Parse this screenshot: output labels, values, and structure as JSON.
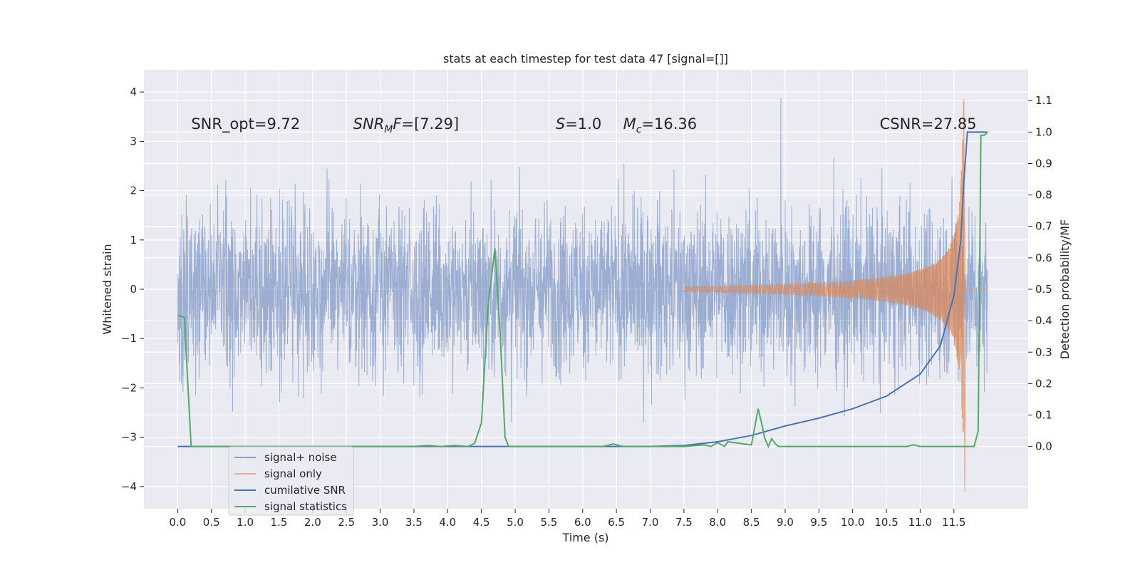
{
  "chart_data": {
    "type": "line",
    "title": "stats at each timestep for test data 47 [signal=[]]",
    "xlabel": "Time (s)",
    "ylabel": "Whitened strain",
    "y2label": "Detection probability/MF",
    "xlim": [
      -0.5,
      12.6
    ],
    "ylim": [
      -4.45,
      4.45
    ],
    "y2lim": [
      -0.198,
      1.198
    ],
    "grid": true,
    "legend_position": "lower-left",
    "x_ticks": [
      "0.0",
      "0.5",
      "1.0",
      "1.5",
      "2.0",
      "2.5",
      "3.0",
      "3.5",
      "4.0",
      "4.5",
      "5.0",
      "5.5",
      "6.0",
      "6.5",
      "7.0",
      "7.5",
      "8.0",
      "8.5",
      "9.0",
      "9.5",
      "10.0",
      "10.5",
      "11.0",
      "11.5"
    ],
    "y_ticks": [
      "4",
      "3",
      "2",
      "1",
      "0",
      "−1",
      "−2",
      "−3",
      "−4"
    ],
    "y2_ticks": [
      "1.1",
      "1.0",
      "0.9",
      "0.8",
      "0.7",
      "0.6",
      "0.5",
      "0.4",
      "0.3",
      "0.2",
      "0.1",
      "0.0"
    ],
    "annotations": [
      {
        "text": "SNR_opt=9.72",
        "x": 0.2,
        "y": 3.25
      },
      {
        "text": "SNRMF=[7.29]",
        "x": 2.6,
        "y": 3.25
      },
      {
        "text": "S=1.0",
        "x": 5.6,
        "y": 3.25
      },
      {
        "text": "Mc=16.36",
        "x": 6.6,
        "y": 3.25
      },
      {
        "text": "CSNR=27.85",
        "x": 10.4,
        "y": 3.25
      }
    ],
    "series": [
      {
        "name": "signal+ noise",
        "color": "#4c72b0",
        "axis": "left",
        "description": "whitened strain data (noise-dominated, roughly ±2 with spikes to ±4)",
        "time_range": [
          0.0,
          12.0
        ],
        "typical_amplitude": 2.0,
        "peaks": {
          "max": 4.1,
          "min": -3.9
        }
      },
      {
        "name": "signal only",
        "color": "#dd8452",
        "axis": "left",
        "description": "chirp waveform growing in amplitude, merging near 11.65 s",
        "onset_time": 7.5,
        "merger_time": 11.65,
        "peak_amplitude": [
          -4.1,
          3.8
        ]
      },
      {
        "name": "cumilative SNR",
        "color": "#4c72b0",
        "axis": "right",
        "x": [
          0.0,
          5.0,
          7.0,
          7.5,
          8.0,
          8.5,
          9.0,
          9.5,
          10.0,
          10.5,
          11.0,
          11.3,
          11.5,
          11.6,
          11.65,
          11.7,
          11.85,
          12.0
        ],
        "y": [
          0.0,
          0.0,
          0.0,
          0.003,
          0.015,
          0.035,
          0.065,
          0.09,
          0.12,
          0.16,
          0.23,
          0.32,
          0.48,
          0.65,
          0.85,
          1.0,
          1.0,
          1.0
        ]
      },
      {
        "name": "signal statistics",
        "color": "#55a868",
        "axis": "right",
        "x": [
          0.0,
          0.05,
          0.1,
          0.15,
          0.2,
          0.3,
          0.5,
          1.0,
          2.0,
          3.0,
          3.5,
          3.7,
          3.9,
          4.1,
          4.3,
          4.4,
          4.5,
          4.6,
          4.7,
          4.78,
          4.85,
          4.9,
          4.97,
          5.05,
          5.5,
          6.3,
          6.45,
          6.6,
          7.5,
          7.8,
          7.9,
          8.0,
          8.1,
          8.15,
          8.5,
          8.6,
          8.65,
          8.7,
          8.75,
          8.8,
          8.85,
          8.9,
          9.0,
          10.0,
          10.8,
          10.9,
          11.0,
          11.8,
          11.86,
          11.9,
          11.95,
          12.0
        ],
        "y": [
          0.415,
          0.415,
          0.41,
          0.2,
          0.0,
          0.0,
          0.0,
          0.0,
          0.0,
          0.0,
          0.0,
          0.003,
          0.0,
          0.003,
          0.0,
          0.01,
          0.075,
          0.45,
          0.63,
          0.35,
          0.03,
          0.0,
          0.0,
          0.0,
          0.0,
          0.0,
          0.008,
          0.0,
          0.0,
          0.005,
          0.0,
          0.012,
          0.0,
          0.015,
          0.005,
          0.12,
          0.075,
          0.025,
          0.0,
          0.025,
          0.01,
          0.0,
          0.0,
          0.0,
          0.0,
          0.005,
          0.0,
          0.0,
          0.05,
          0.99,
          0.99,
          1.0
        ]
      }
    ]
  }
}
